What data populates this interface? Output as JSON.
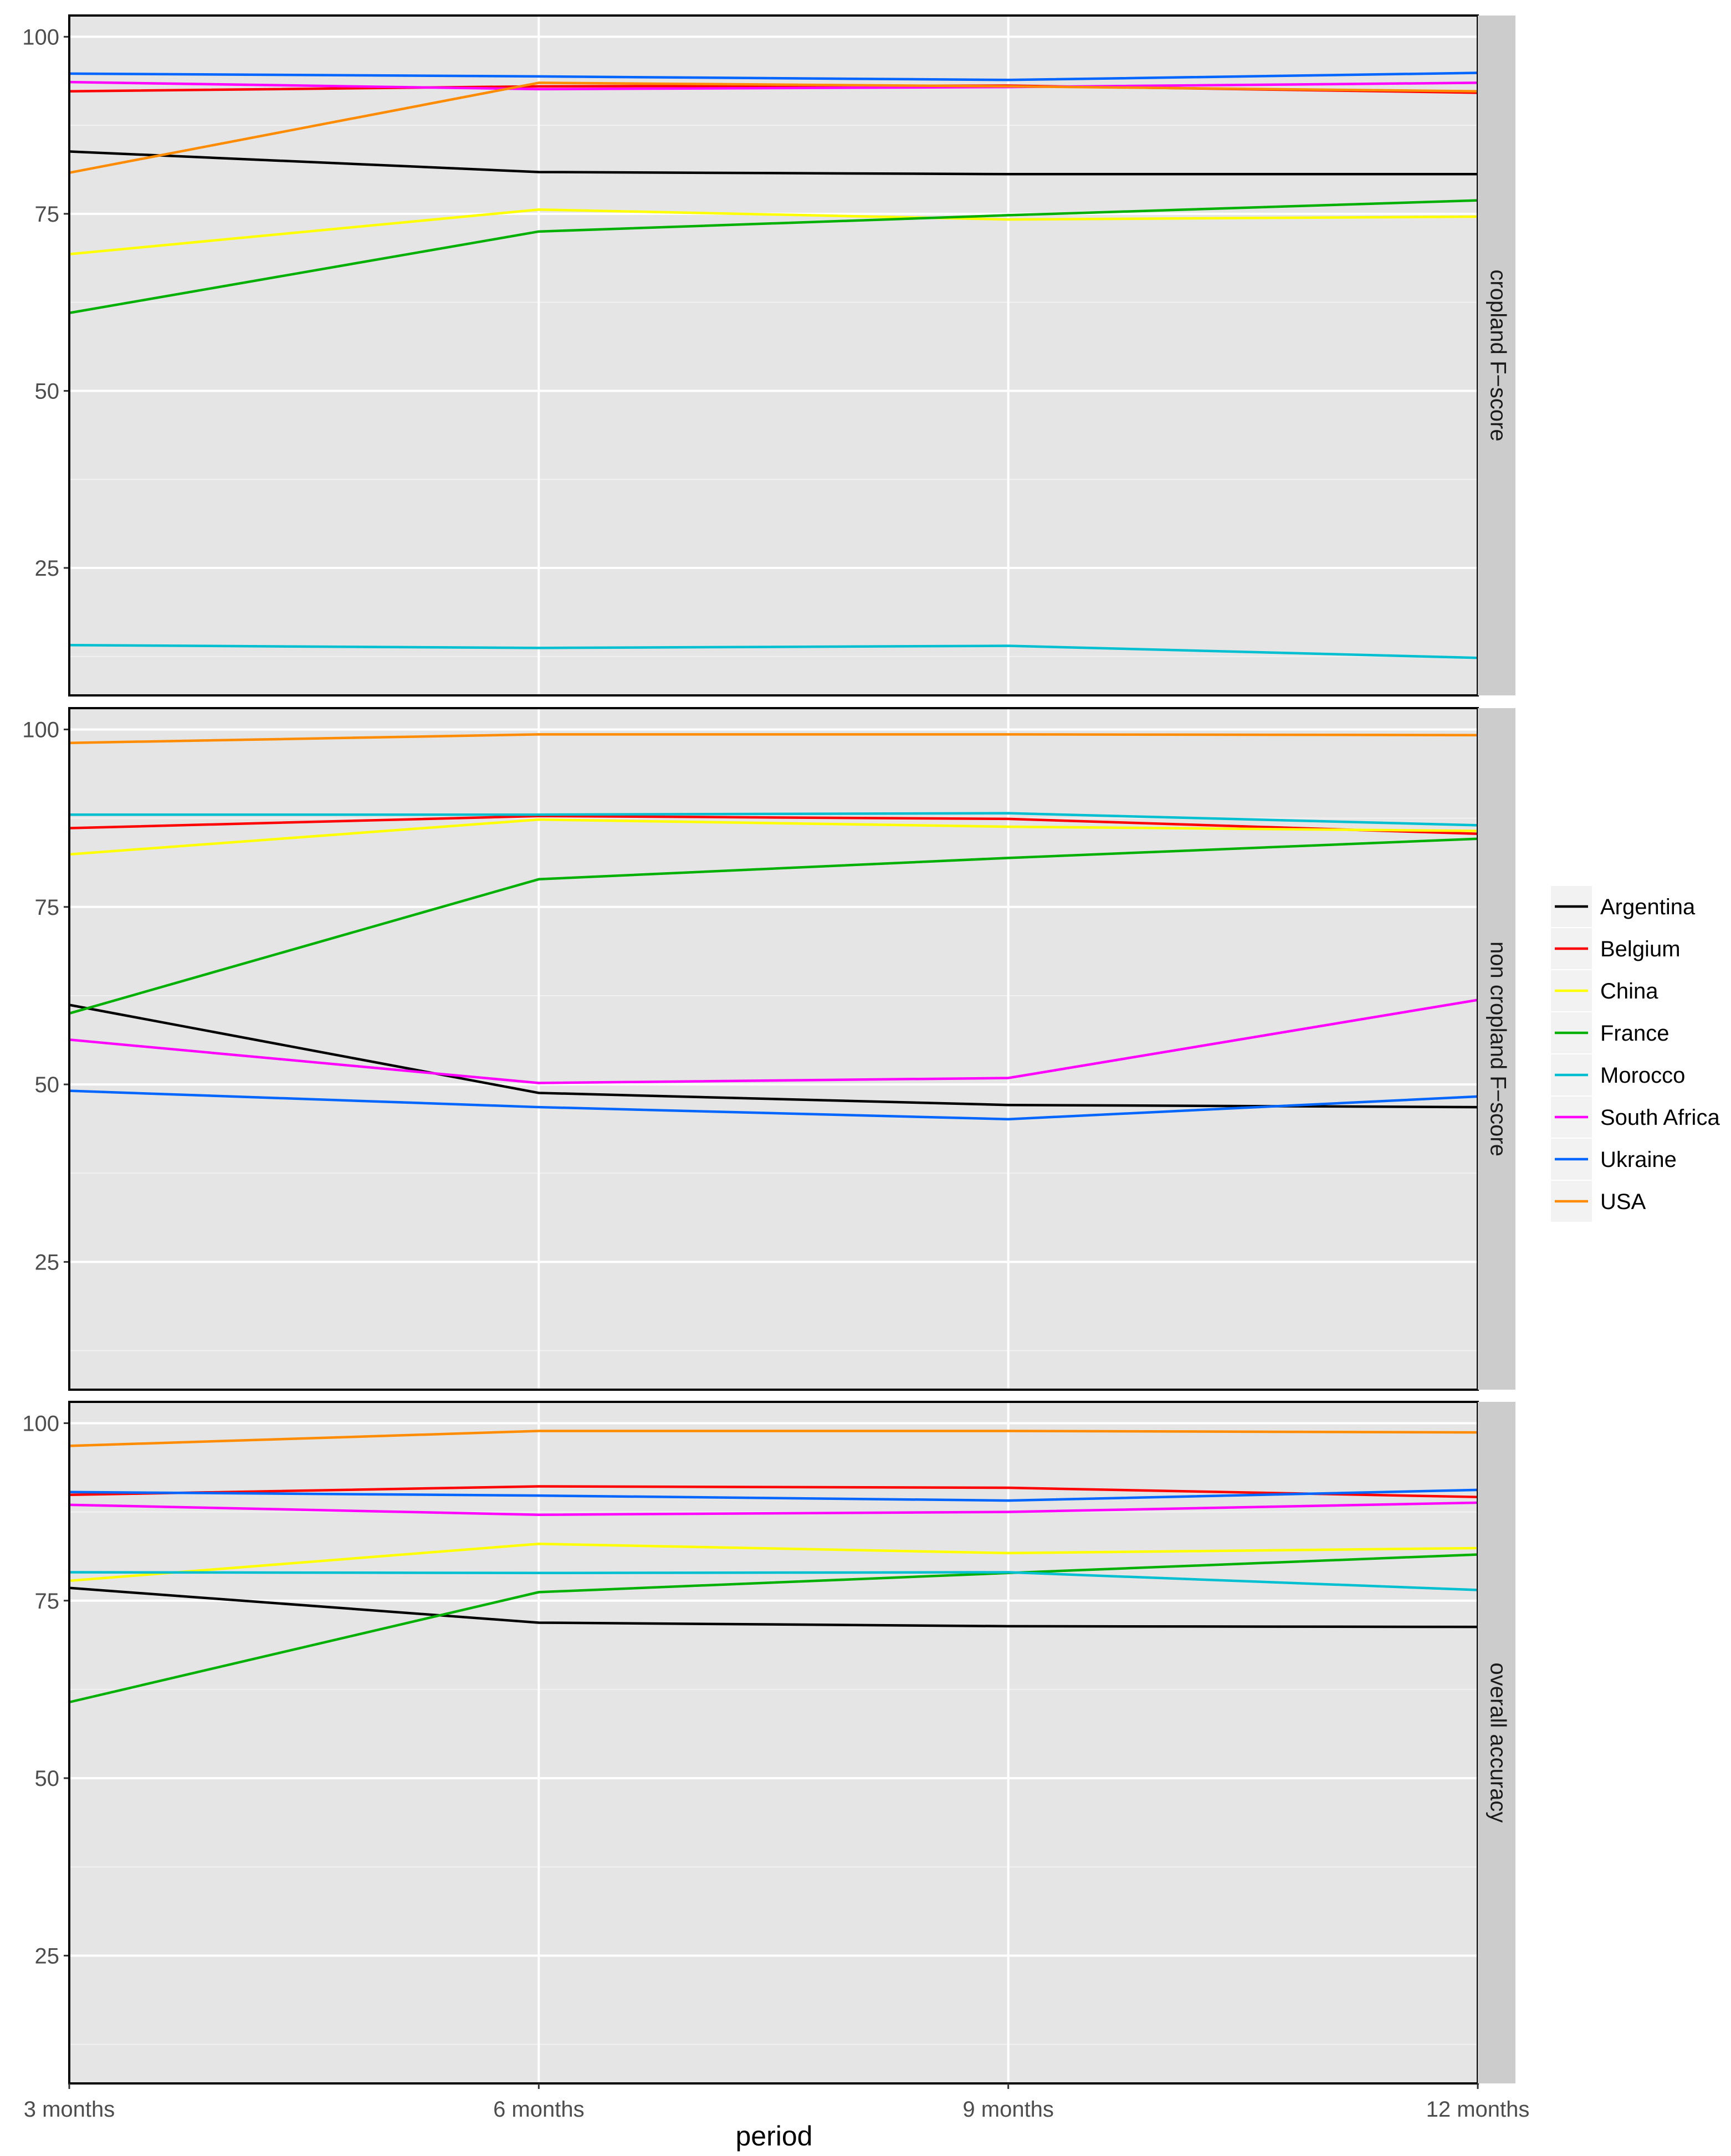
{
  "chart_data": {
    "type": "line",
    "categories": [
      "3 months",
      "6 months",
      "9 months",
      "12 months"
    ],
    "xlabel": "period",
    "ylabel": "",
    "ylim": [
      7,
      103
    ],
    "yticks": [
      25,
      50,
      75,
      100
    ],
    "grid": true,
    "legend_position": "right",
    "series_colors": {
      "Argentina": "#000000",
      "Belgium": "#ff0000",
      "China": "#ffff00",
      "France": "#00b000",
      "Morocco": "#00bfd0",
      "South Africa": "#ff00ff",
      "Ukraine": "#0066ff",
      "USA": "#ff8c00"
    },
    "legend": [
      "Argentina",
      "Belgium",
      "China",
      "France",
      "Morocco",
      "South Africa",
      "Ukraine",
      "USA"
    ],
    "panels": [
      {
        "label": "cropland F−score",
        "series": [
          {
            "name": "Argentina",
            "values": [
              83.8,
              80.9,
              80.6,
              80.6
            ]
          },
          {
            "name": "Belgium",
            "values": [
              92.3,
              93.0,
              93.1,
              92.1
            ]
          },
          {
            "name": "China",
            "values": [
              69.3,
              75.6,
              74.2,
              74.6
            ]
          },
          {
            "name": "France",
            "values": [
              61.0,
              72.5,
              74.8,
              76.9
            ]
          },
          {
            "name": "Morocco",
            "values": [
              14.1,
              13.7,
              14.0,
              12.3
            ]
          },
          {
            "name": "South Africa",
            "values": [
              93.6,
              92.6,
              92.9,
              93.5
            ]
          },
          {
            "name": "Ukraine",
            "values": [
              94.8,
              94.4,
              93.9,
              94.9
            ]
          },
          {
            "name": "USA",
            "values": [
              80.8,
              93.5,
              93.0,
              92.3
            ]
          }
        ]
      },
      {
        "label": "non cropland F−score",
        "series": [
          {
            "name": "Argentina",
            "values": [
              61.2,
              48.8,
              47.1,
              46.8
            ]
          },
          {
            "name": "Belgium",
            "values": [
              86.1,
              87.8,
              87.4,
              85.3
            ]
          },
          {
            "name": "China",
            "values": [
              82.4,
              87.3,
              86.3,
              85.7
            ]
          },
          {
            "name": "France",
            "values": [
              60.0,
              78.9,
              81.9,
              84.6
            ]
          },
          {
            "name": "Morocco",
            "values": [
              88.0,
              88.0,
              88.2,
              86.5
            ]
          },
          {
            "name": "South Africa",
            "values": [
              56.3,
              50.2,
              50.9,
              61.9
            ]
          },
          {
            "name": "Ukraine",
            "values": [
              49.1,
              46.8,
              45.1,
              48.3
            ]
          },
          {
            "name": "USA",
            "values": [
              98.1,
              99.3,
              99.3,
              99.2
            ]
          }
        ]
      },
      {
        "label": "overall accuracy",
        "series": [
          {
            "name": "Argentina",
            "values": [
              76.8,
              71.9,
              71.4,
              71.3
            ]
          },
          {
            "name": "Belgium",
            "values": [
              89.9,
              91.1,
              90.9,
              89.6
            ]
          },
          {
            "name": "China",
            "values": [
              77.8,
              83.0,
              81.7,
              82.4
            ]
          },
          {
            "name": "France",
            "values": [
              60.7,
              76.2,
              78.9,
              81.5
            ]
          },
          {
            "name": "Morocco",
            "values": [
              79.0,
              78.9,
              79.0,
              76.5
            ]
          },
          {
            "name": "South Africa",
            "values": [
              88.5,
              87.1,
              87.5,
              88.8
            ]
          },
          {
            "name": "Ukraine",
            "values": [
              90.3,
              89.8,
              89.1,
              90.6
            ]
          },
          {
            "name": "USA",
            "values": [
              96.8,
              98.9,
              98.9,
              98.7
            ]
          }
        ]
      }
    ]
  }
}
